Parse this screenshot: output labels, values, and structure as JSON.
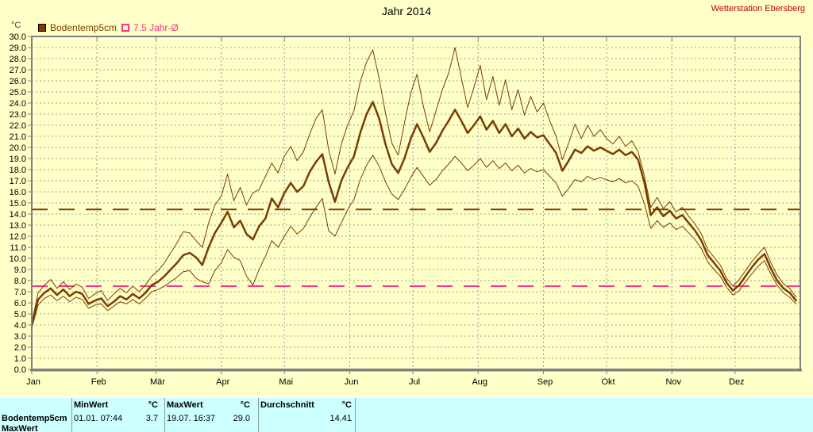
{
  "header": {
    "title": "Jahr 2014",
    "station": "Wetterstation Ebersberg"
  },
  "legend": [
    {
      "label": "Bodentemp5cm",
      "color": "#7b3d00",
      "filled": true
    },
    {
      "label": "7.5 Jahr-Ø",
      "color": "#ff3388",
      "filled": false
    }
  ],
  "axis_unit": "°C",
  "chart_data": {
    "type": "line",
    "title": "Jahr 2014",
    "ylabel": "°C",
    "ylim": [
      0,
      30
    ],
    "x_domain_days": [
      0,
      365
    ],
    "grid": true,
    "y_tick_step": 1.0,
    "y_tick_labels": [
      "30.0",
      "29.0",
      "28.0",
      "27.0",
      "26.0",
      "25.0",
      "24.0",
      "23.0",
      "22.0",
      "21.0",
      "20.0",
      "19.0",
      "18.0",
      "17.0",
      "16.0",
      "15.0",
      "14.0",
      "13.0",
      "12.0",
      "11.0",
      "10.0",
      "9.0",
      "8.0",
      "7.0",
      "6.0",
      "5.0",
      "4.0",
      "3.0",
      "2.0",
      "1.0",
      "0.0"
    ],
    "month_labels": [
      "Jan",
      "Feb",
      "Mär",
      "Apr",
      "Mai",
      "Jun",
      "Jul",
      "Aug",
      "Sep",
      "Okt",
      "Nov",
      "Dez"
    ],
    "month_start_days": [
      0,
      31,
      59,
      90,
      120,
      151,
      181,
      212,
      243,
      273,
      304,
      334
    ],
    "reference_lines": [
      {
        "name": "durchschnitt-2014",
        "value": 14.41,
        "color": "#7b3d00"
      },
      {
        "name": "jahr-mittel",
        "value": 7.5,
        "color": "#ff3388"
      }
    ],
    "x_days": [
      0,
      3,
      6,
      9,
      12,
      15,
      18,
      21,
      24,
      27,
      30,
      33,
      36,
      39,
      42,
      45,
      48,
      51,
      54,
      57,
      60,
      63,
      66,
      69,
      72,
      75,
      78,
      81,
      84,
      87,
      90,
      93,
      96,
      99,
      102,
      105,
      108,
      111,
      114,
      117,
      120,
      123,
      126,
      129,
      132,
      135,
      138,
      141,
      144,
      147,
      150,
      153,
      156,
      159,
      162,
      165,
      168,
      171,
      174,
      177,
      180,
      183,
      186,
      189,
      192,
      195,
      198,
      201,
      204,
      207,
      210,
      213,
      216,
      219,
      222,
      225,
      228,
      231,
      234,
      237,
      240,
      243,
      246,
      249,
      252,
      255,
      258,
      261,
      264,
      267,
      270,
      273,
      276,
      279,
      282,
      285,
      288,
      291,
      294,
      297,
      300,
      303,
      306,
      309,
      312,
      315,
      318,
      321,
      324,
      327,
      330,
      333,
      336,
      339,
      342,
      345,
      348,
      351,
      354,
      357,
      360,
      363
    ],
    "series": [
      {
        "name": "Bodentemp5cm Tagesmittel",
        "role": "mean",
        "width": 2.5,
        "color": "#7b3d00",
        "values": [
          4.0,
          6.3,
          6.9,
          7.3,
          6.7,
          7.2,
          6.6,
          7.0,
          6.8,
          5.9,
          6.2,
          6.4,
          5.7,
          6.1,
          6.6,
          6.3,
          6.8,
          6.4,
          6.9,
          7.6,
          7.9,
          8.4,
          9.0,
          9.6,
          10.3,
          10.5,
          10.1,
          9.4,
          11.0,
          12.3,
          13.2,
          14.2,
          12.8,
          13.4,
          12.2,
          11.7,
          12.9,
          13.6,
          15.4,
          14.6,
          15.9,
          16.8,
          16.0,
          16.5,
          17.8,
          18.7,
          19.4,
          16.9,
          15.1,
          17.0,
          18.2,
          19.2,
          21.3,
          23.0,
          24.1,
          22.6,
          20.3,
          18.5,
          17.7,
          19.0,
          20.8,
          22.1,
          20.9,
          19.6,
          20.4,
          21.5,
          22.4,
          23.4,
          22.4,
          21.3,
          22.0,
          22.8,
          21.6,
          22.4,
          21.3,
          22.1,
          21.0,
          21.7,
          20.8,
          21.4,
          20.9,
          21.1,
          20.3,
          19.5,
          17.9,
          18.8,
          19.8,
          19.5,
          20.1,
          19.7,
          20.0,
          19.7,
          19.4,
          19.8,
          19.3,
          19.6,
          18.9,
          16.8,
          13.9,
          14.6,
          13.8,
          14.3,
          13.6,
          13.9,
          13.2,
          12.5,
          11.6,
          10.3,
          9.6,
          8.9,
          7.8,
          7.1,
          7.6,
          8.4,
          9.2,
          9.9,
          10.4,
          9.1,
          8.0,
          7.3,
          6.9,
          6.2
        ]
      },
      {
        "name": "Bodentemp5cm Tagesmaximum",
        "role": "max",
        "width": 1,
        "color": "#7b3d00",
        "values": [
          4.2,
          6.9,
          7.6,
          8.1,
          7.3,
          7.9,
          7.2,
          7.7,
          7.4,
          6.4,
          6.8,
          7.1,
          6.2,
          6.8,
          7.3,
          6.9,
          7.5,
          7.0,
          7.6,
          8.4,
          8.9,
          9.6,
          10.5,
          11.4,
          12.4,
          12.3,
          11.6,
          11.0,
          13.2,
          14.8,
          15.6,
          17.6,
          15.2,
          16.4,
          14.8,
          15.9,
          16.2,
          17.4,
          18.6,
          17.7,
          19.2,
          20.1,
          18.8,
          19.6,
          21.2,
          22.6,
          23.4,
          19.8,
          17.6,
          20.3,
          22.0,
          23.3,
          25.9,
          27.7,
          28.8,
          26.2,
          23.1,
          20.4,
          19.3,
          22.2,
          24.9,
          26.6,
          23.7,
          21.4,
          23.3,
          25.2,
          26.7,
          29.0,
          26.3,
          23.6,
          25.4,
          27.4,
          24.3,
          26.4,
          23.8,
          26.1,
          23.4,
          25.2,
          22.9,
          24.6,
          23.2,
          24.0,
          22.4,
          21.0,
          18.9,
          20.4,
          22.1,
          20.8,
          22.0,
          21.0,
          21.6,
          20.8,
          20.3,
          21.0,
          20.1,
          20.6,
          19.6,
          17.4,
          14.6,
          15.5,
          14.5,
          15.1,
          14.2,
          14.6,
          13.8,
          13.1,
          12.2,
          10.8,
          10.1,
          9.4,
          8.2,
          7.5,
          8.1,
          8.9,
          9.7,
          10.4,
          11.0,
          9.6,
          8.5,
          7.7,
          7.3,
          6.5
        ]
      },
      {
        "name": "Bodentemp5cm Tagesminimum",
        "role": "min",
        "width": 1,
        "color": "#7b3d00",
        "values": [
          3.7,
          5.8,
          6.4,
          6.7,
          6.2,
          6.6,
          6.1,
          6.5,
          6.3,
          5.5,
          5.8,
          5.9,
          5.3,
          5.7,
          6.1,
          5.9,
          6.3,
          5.9,
          6.4,
          7.0,
          7.2,
          7.5,
          7.9,
          8.3,
          8.8,
          8.9,
          8.2,
          7.9,
          7.7,
          8.9,
          9.6,
          10.8,
          10.1,
          9.8,
          8.4,
          7.6,
          9.0,
          10.2,
          11.6,
          11.0,
          12.0,
          12.9,
          12.2,
          12.7,
          13.7,
          14.6,
          15.4,
          12.5,
          12.0,
          13.2,
          14.4,
          15.3,
          17.1,
          18.4,
          19.3,
          18.3,
          16.9,
          15.8,
          15.3,
          16.2,
          17.3,
          18.2,
          17.4,
          16.6,
          17.1,
          17.9,
          18.5,
          19.2,
          18.6,
          17.9,
          18.4,
          19.0,
          18.2,
          18.8,
          18.1,
          18.6,
          17.9,
          18.4,
          17.7,
          18.1,
          17.8,
          18.0,
          17.4,
          16.8,
          15.6,
          16.3,
          17.1,
          16.9,
          17.4,
          17.1,
          17.3,
          17.1,
          16.9,
          17.2,
          16.8,
          17.0,
          16.5,
          14.9,
          12.7,
          13.4,
          12.8,
          13.2,
          12.6,
          12.9,
          12.3,
          11.7,
          10.9,
          9.7,
          9.0,
          8.4,
          7.4,
          6.7,
          7.1,
          7.9,
          8.6,
          9.3,
          9.8,
          8.6,
          7.6,
          6.9,
          6.5,
          5.9
        ]
      }
    ]
  },
  "stats_table": {
    "row_label": "Bodentemp5cm",
    "col_min_header": "MinWert",
    "col_min_unit": "°C",
    "col_max_header": "MaxWert",
    "col_max_unit": "°C",
    "col_avg_header": "Durchschnitt",
    "col_avg_unit": "°C",
    "min_datetime": "01.01.  07:44",
    "min_value": "3.7",
    "max_datetime": "19.07.  16:37",
    "max_value": "29.0",
    "avg_value": "14.41",
    "partial_row_label": "MaxWert"
  },
  "colors": {
    "background": "#ffffc8",
    "frame": "#808080",
    "grid": "#9c9c9c",
    "series_brown": "#7b3d00",
    "average_pink": "#ff3388",
    "station_red": "#c00000",
    "table_background": "#ccffff"
  }
}
